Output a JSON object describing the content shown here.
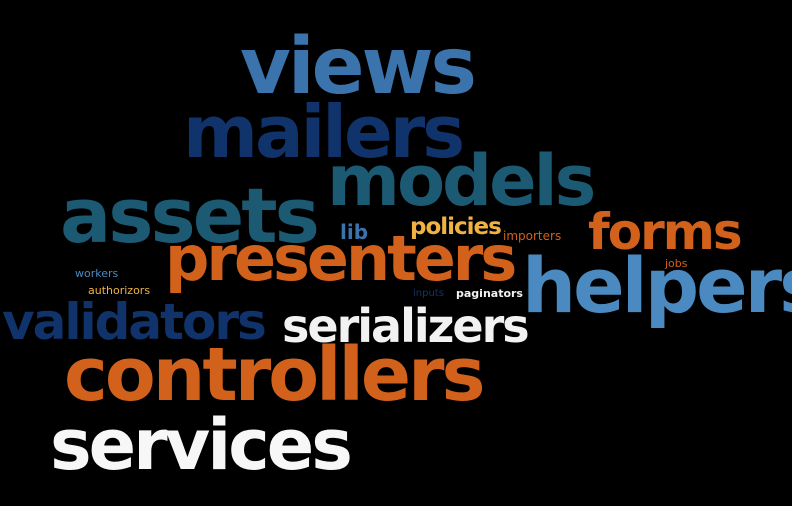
{
  "words": {
    "views": "views",
    "mailers": "mailers",
    "models": "models",
    "assets": "assets",
    "lib": "lib",
    "policies": "policies",
    "importers": "importers",
    "forms": "forms",
    "presenters": "presenters",
    "jobs": "jobs",
    "helpers": "helpers",
    "workers": "workers",
    "authorizors": "authorizors",
    "inputs": "inputs",
    "paginators": "paginators",
    "validators": "validators",
    "serializers": "serializers",
    "controllers": "controllers",
    "services": "services"
  },
  "colors": {
    "background": "#000000",
    "light_blue": "#4a8ac0",
    "mid_blue": "#3b73ad",
    "navy": "#10336b",
    "teal": "#1b5a72",
    "orange": "#d2611b",
    "gold": "#f0b342",
    "white": "#f2f2f2"
  }
}
